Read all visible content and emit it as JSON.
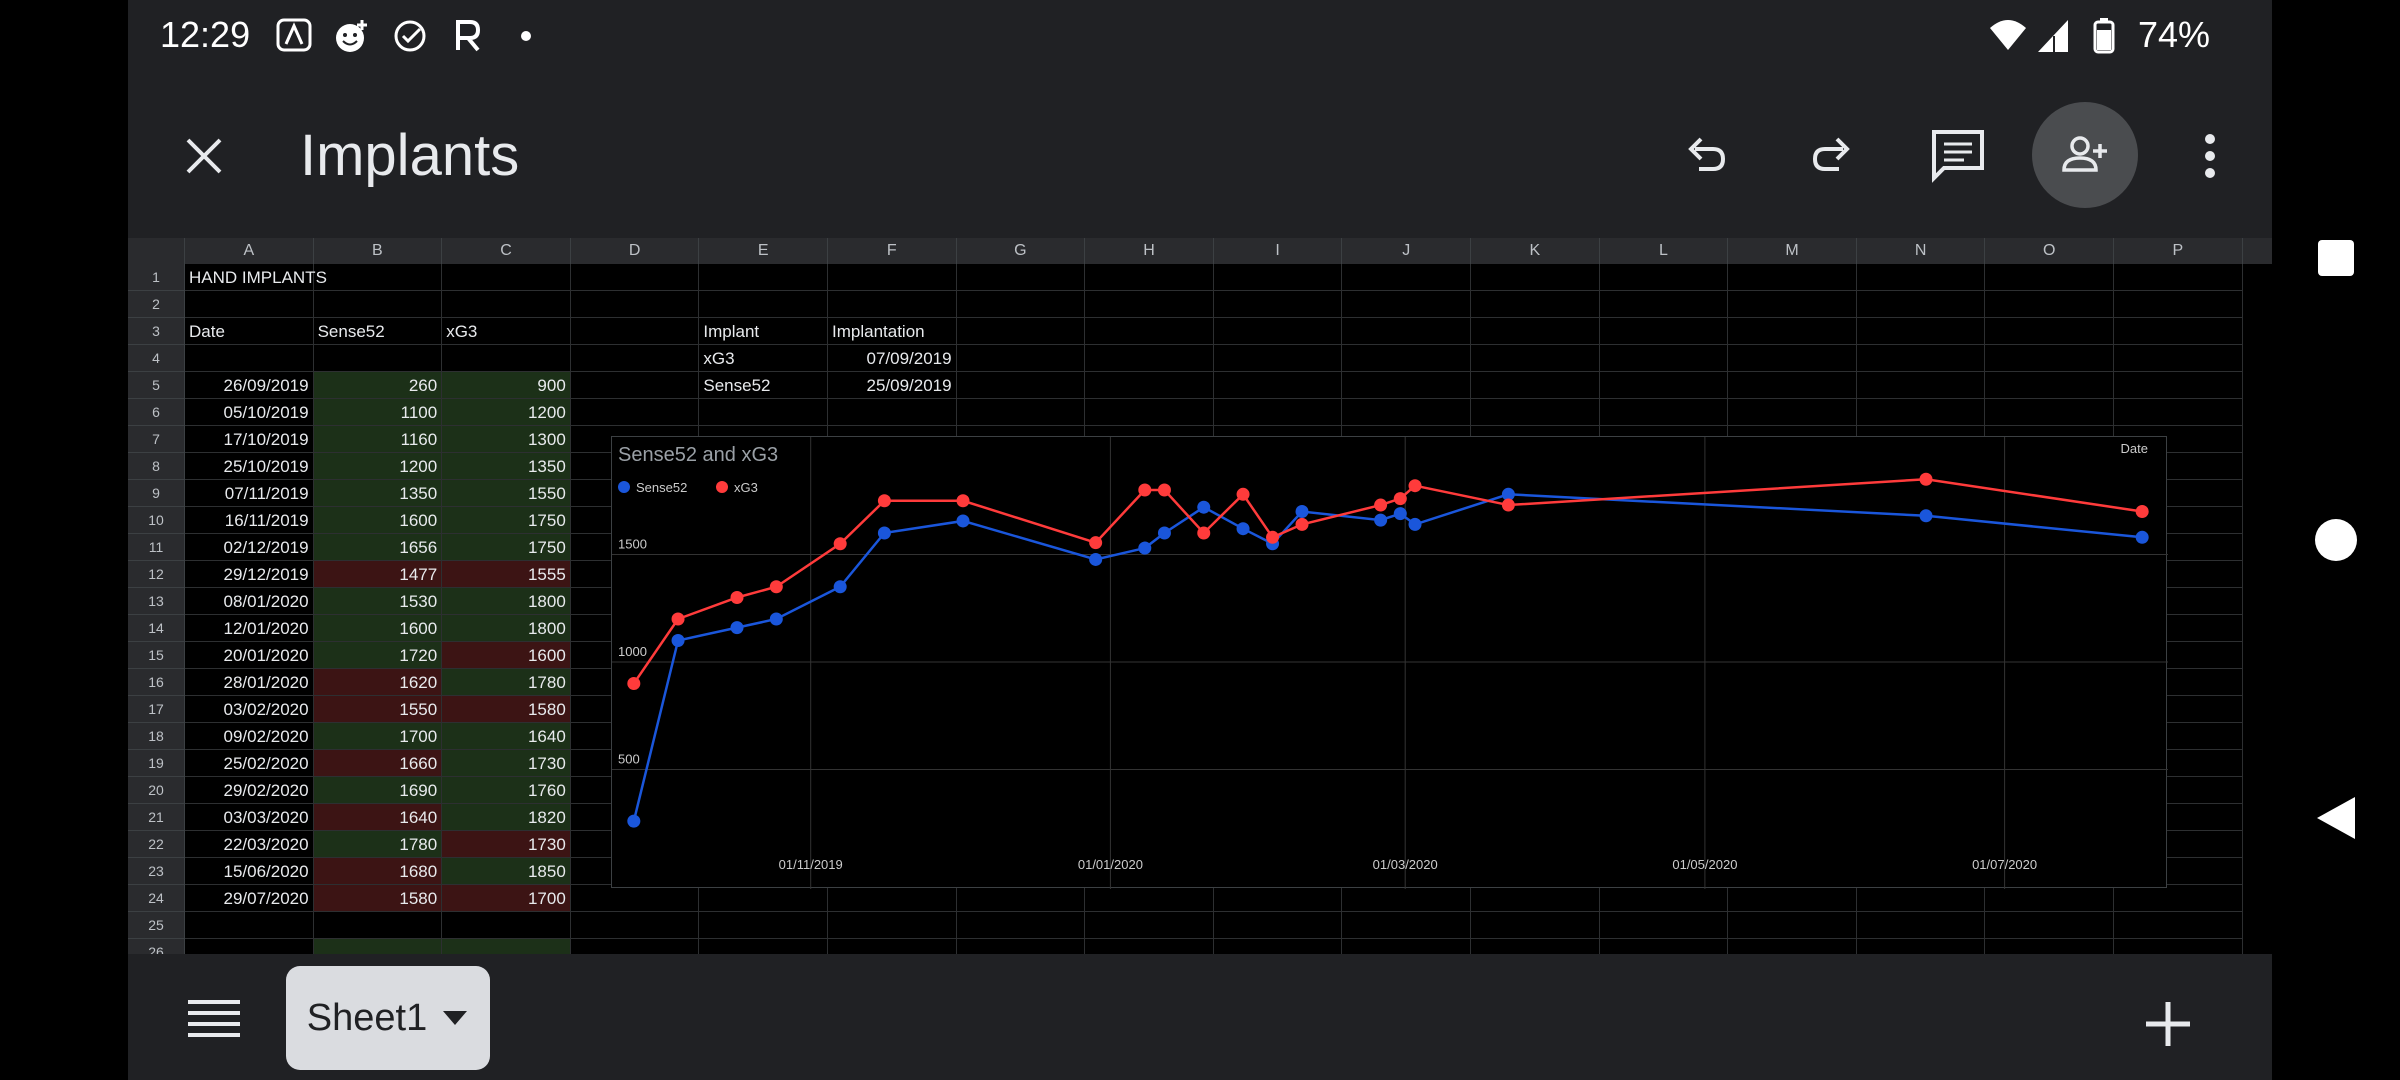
{
  "status_bar": {
    "time": "12:29",
    "battery_pct": "74%",
    "icons": [
      "assistant-icon",
      "emoji-icon",
      "check-circle-icon",
      "r-icon",
      "dot-icon",
      "wifi-icon",
      "signal-icon",
      "battery-icon"
    ]
  },
  "toolbar": {
    "title": "Implants",
    "close_icon": "close-icon",
    "actions": [
      "undo-icon",
      "redo-icon",
      "comment-icon",
      "add-person-icon",
      "more-vert-icon"
    ]
  },
  "sheet": {
    "columns": [
      "A",
      "B",
      "C",
      "D",
      "E",
      "F",
      "G",
      "H",
      "I",
      "J",
      "K",
      "L",
      "M",
      "N",
      "O",
      "P"
    ],
    "rows": [
      {
        "n": "1",
        "a": "HAND IMPLANTS",
        "b": "",
        "c": "",
        "e": "",
        "f": ""
      },
      {
        "n": "2",
        "a": "",
        "b": "",
        "c": "",
        "e": "",
        "f": ""
      },
      {
        "n": "3",
        "a": "Date",
        "b": "Sense52",
        "c": "xG3",
        "e": "Implant",
        "f": "Implantation"
      },
      {
        "n": "4",
        "a": "",
        "b": "",
        "c": "",
        "e": "xG3",
        "f": "07/09/2019"
      },
      {
        "n": "5",
        "a": "26/09/2019",
        "b": "260",
        "c": "900",
        "bs": "good",
        "cs": "good",
        "e": "Sense52",
        "f": "25/09/2019"
      },
      {
        "n": "6",
        "a": "05/10/2019",
        "b": "1100",
        "c": "1200",
        "bs": "good",
        "cs": "good"
      },
      {
        "n": "7",
        "a": "17/10/2019",
        "b": "1160",
        "c": "1300",
        "bs": "good",
        "cs": "good"
      },
      {
        "n": "8",
        "a": "25/10/2019",
        "b": "1200",
        "c": "1350",
        "bs": "good",
        "cs": "good"
      },
      {
        "n": "9",
        "a": "07/11/2019",
        "b": "1350",
        "c": "1550",
        "bs": "good",
        "cs": "good"
      },
      {
        "n": "10",
        "a": "16/11/2019",
        "b": "1600",
        "c": "1750",
        "bs": "good",
        "cs": "good"
      },
      {
        "n": "11",
        "a": "02/12/2019",
        "b": "1656",
        "c": "1750",
        "bs": "good",
        "cs": "good"
      },
      {
        "n": "12",
        "a": "29/12/2019",
        "b": "1477",
        "c": "1555",
        "bs": "bad",
        "cs": "bad"
      },
      {
        "n": "13",
        "a": "08/01/2020",
        "b": "1530",
        "c": "1800",
        "bs": "good",
        "cs": "good"
      },
      {
        "n": "14",
        "a": "12/01/2020",
        "b": "1600",
        "c": "1800",
        "bs": "good",
        "cs": "good"
      },
      {
        "n": "15",
        "a": "20/01/2020",
        "b": "1720",
        "c": "1600",
        "bs": "good",
        "cs": "bad"
      },
      {
        "n": "16",
        "a": "28/01/2020",
        "b": "1620",
        "c": "1780",
        "bs": "bad",
        "cs": "good"
      },
      {
        "n": "17",
        "a": "03/02/2020",
        "b": "1550",
        "c": "1580",
        "bs": "bad",
        "cs": "bad"
      },
      {
        "n": "18",
        "a": "09/02/2020",
        "b": "1700",
        "c": "1640",
        "bs": "good",
        "cs": "good"
      },
      {
        "n": "19",
        "a": "25/02/2020",
        "b": "1660",
        "c": "1730",
        "bs": "bad",
        "cs": "good"
      },
      {
        "n": "20",
        "a": "29/02/2020",
        "b": "1690",
        "c": "1760",
        "bs": "good",
        "cs": "good"
      },
      {
        "n": "21",
        "a": "03/03/2020",
        "b": "1640",
        "c": "1820",
        "bs": "bad",
        "cs": "good"
      },
      {
        "n": "22",
        "a": "22/03/2020",
        "b": "1780",
        "c": "1730",
        "bs": "good",
        "cs": "bad"
      },
      {
        "n": "23",
        "a": "15/06/2020",
        "b": "1680",
        "c": "1850",
        "bs": "bad",
        "cs": "good"
      },
      {
        "n": "24",
        "a": "29/07/2020",
        "b": "1580",
        "c": "1700",
        "bs": "bad",
        "cs": "bad"
      },
      {
        "n": "25",
        "a": "",
        "b": "",
        "c": ""
      },
      {
        "n": "26",
        "a": "",
        "b": "",
        "c": "",
        "bs": "good",
        "cs": "good"
      }
    ]
  },
  "chart_data": {
    "type": "line",
    "title": "Sense52 and xG3",
    "xlabel": "Date",
    "ylabel": "",
    "legend_position": "top-left",
    "grid": true,
    "x_tick_labels": [
      "01/11/2019",
      "01/01/2020",
      "01/03/2020",
      "01/05/2020",
      "01/07/2020"
    ],
    "y_tick_labels": [
      "500",
      "1000",
      "1500"
    ],
    "x": [
      "26/09/2019",
      "05/10/2019",
      "17/10/2019",
      "25/10/2019",
      "07/11/2019",
      "16/11/2019",
      "02/12/2019",
      "29/12/2019",
      "08/01/2020",
      "12/01/2020",
      "20/01/2020",
      "28/01/2020",
      "03/02/2020",
      "09/02/2020",
      "25/02/2020",
      "29/02/2020",
      "03/03/2020",
      "22/03/2020",
      "15/06/2020",
      "29/07/2020"
    ],
    "series": [
      {
        "name": "Sense52",
        "color": "#1a56db",
        "values": [
          260,
          1100,
          1160,
          1200,
          1350,
          1600,
          1656,
          1477,
          1530,
          1600,
          1720,
          1620,
          1550,
          1700,
          1660,
          1690,
          1640,
          1780,
          1680,
          1580
        ]
      },
      {
        "name": "xG3",
        "color": "#ff3b3b",
        "values": [
          900,
          1200,
          1300,
          1350,
          1550,
          1750,
          1750,
          1555,
          1800,
          1800,
          1600,
          1780,
          1580,
          1640,
          1730,
          1760,
          1820,
          1730,
          1850,
          1700
        ]
      }
    ]
  },
  "bottom_bar": {
    "sheet_tab_label": "Sheet1",
    "list_icon": "menu-list-icon",
    "add_icon": "add-icon"
  },
  "nav": [
    "square-icon",
    "circle-icon",
    "back-triangle-icon"
  ],
  "colors": {
    "good": "#1c3018",
    "bad": "#3c1414",
    "app_bg": "#202124"
  }
}
